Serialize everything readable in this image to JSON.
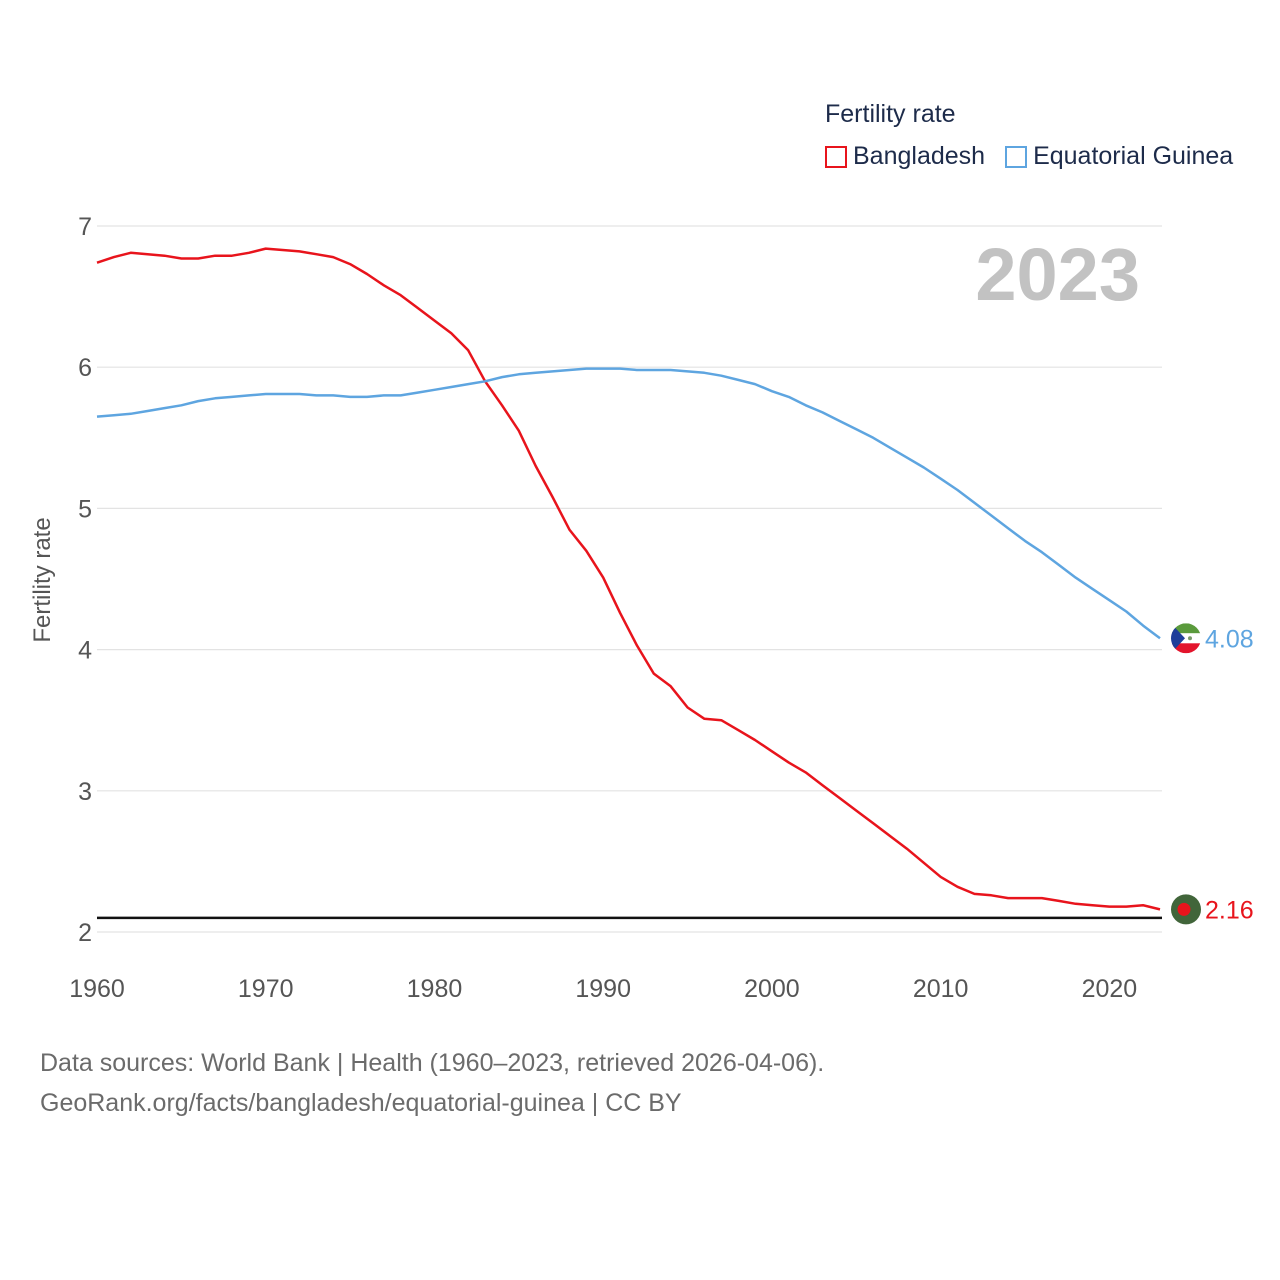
{
  "legend": {
    "title": "Fertility rate",
    "items": [
      {
        "label": "Bangladesh",
        "color": "#e8141c"
      },
      {
        "label": "Equatorial Guinea",
        "color": "#5ea5e0"
      }
    ]
  },
  "year_label": "2023",
  "footer": {
    "line1": "Data sources: World Bank | Health (1960–2023, retrieved 2026-04-06).",
    "line2": "GeoRank.org/facts/bangladesh/equatorial-guinea | CC BY"
  },
  "chart_data": {
    "type": "line",
    "title": "Fertility rate",
    "xlabel": "",
    "ylabel": "Fertility rate",
    "xlim": [
      1960,
      2023
    ],
    "ylim": [
      2,
      7
    ],
    "xticks": [
      1960,
      1970,
      1980,
      1990,
      2000,
      2010,
      2020
    ],
    "yticks": [
      2,
      3,
      4,
      5,
      6,
      7
    ],
    "reference_line": 2.1,
    "x": [
      1960,
      1961,
      1962,
      1963,
      1964,
      1965,
      1966,
      1967,
      1968,
      1969,
      1970,
      1971,
      1972,
      1973,
      1974,
      1975,
      1976,
      1977,
      1978,
      1979,
      1980,
      1981,
      1982,
      1983,
      1984,
      1985,
      1986,
      1987,
      1988,
      1989,
      1990,
      1991,
      1992,
      1993,
      1994,
      1995,
      1996,
      1997,
      1998,
      1999,
      2000,
      2001,
      2002,
      2003,
      2004,
      2005,
      2006,
      2007,
      2008,
      2009,
      2010,
      2011,
      2012,
      2013,
      2014,
      2015,
      2016,
      2017,
      2018,
      2019,
      2020,
      2021,
      2022,
      2023
    ],
    "series": [
      {
        "name": "Bangladesh",
        "color": "#e8141c",
        "end_label": "2.16",
        "values": [
          6.74,
          6.78,
          6.81,
          6.8,
          6.79,
          6.77,
          6.77,
          6.79,
          6.79,
          6.81,
          6.84,
          6.83,
          6.82,
          6.8,
          6.78,
          6.73,
          6.66,
          6.58,
          6.51,
          6.42,
          6.33,
          6.24,
          6.12,
          5.9,
          5.73,
          5.55,
          5.3,
          5.08,
          4.85,
          4.7,
          4.51,
          4.26,
          4.03,
          3.83,
          3.74,
          3.59,
          3.51,
          3.5,
          3.43,
          3.36,
          3.28,
          3.2,
          3.13,
          3.04,
          2.95,
          2.86,
          2.77,
          2.68,
          2.59,
          2.49,
          2.39,
          2.32,
          2.27,
          2.26,
          2.24,
          2.24,
          2.24,
          2.22,
          2.2,
          2.19,
          2.18,
          2.18,
          2.19,
          2.16
        ]
      },
      {
        "name": "Equatorial Guinea",
        "color": "#5ea5e0",
        "end_label": "4.08",
        "values": [
          5.65,
          5.66,
          5.67,
          5.69,
          5.71,
          5.73,
          5.76,
          5.78,
          5.79,
          5.8,
          5.81,
          5.81,
          5.81,
          5.8,
          5.8,
          5.79,
          5.79,
          5.8,
          5.8,
          5.82,
          5.84,
          5.86,
          5.88,
          5.9,
          5.93,
          5.95,
          5.96,
          5.97,
          5.98,
          5.99,
          5.99,
          5.99,
          5.98,
          5.98,
          5.98,
          5.97,
          5.96,
          5.94,
          5.91,
          5.88,
          5.83,
          5.79,
          5.73,
          5.68,
          5.62,
          5.56,
          5.5,
          5.43,
          5.36,
          5.29,
          5.21,
          5.13,
          5.04,
          4.95,
          4.86,
          4.77,
          4.69,
          4.6,
          4.51,
          4.43,
          4.35,
          4.27,
          4.17,
          4.08
        ]
      }
    ]
  }
}
